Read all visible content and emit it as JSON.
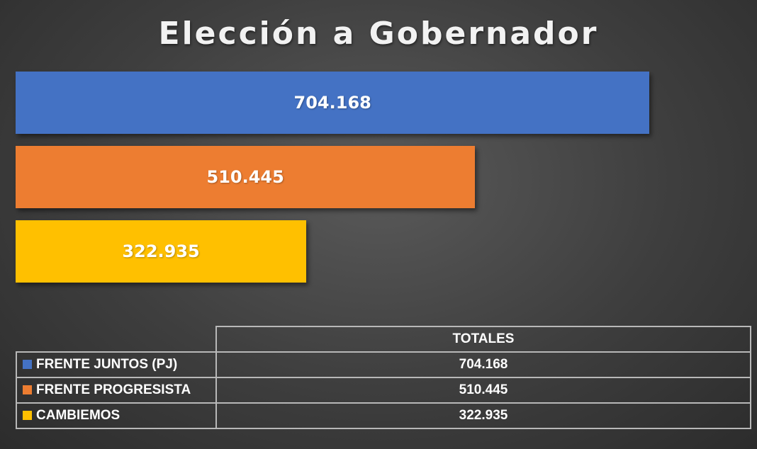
{
  "chart_data": {
    "type": "bar",
    "orientation": "horizontal",
    "title": "Elección a Gobernador",
    "categories": [
      "FRENTE JUNTOS (PJ)",
      "FRENTE PROGRESISTA",
      "CAMBIEMOS"
    ],
    "values": [
      704168,
      510445,
      322935
    ],
    "value_labels": [
      "704.168",
      "510.445",
      "322.935"
    ],
    "colors": [
      "#4472c4",
      "#ed7d31",
      "#ffc000"
    ],
    "xlim": [
      0,
      770000
    ],
    "grid": false,
    "legend": "table-bottom"
  },
  "table": {
    "column_header": "TOTALES",
    "rows": [
      {
        "name": "FRENTE JUNTOS (PJ)",
        "value": "704.168",
        "color": "#4472c4"
      },
      {
        "name": "FRENTE PROGRESISTA",
        "value": "510.445",
        "color": "#ed7d31"
      },
      {
        "name": "CAMBIEMOS",
        "value": "322.935",
        "color": "#ffc000"
      }
    ]
  }
}
